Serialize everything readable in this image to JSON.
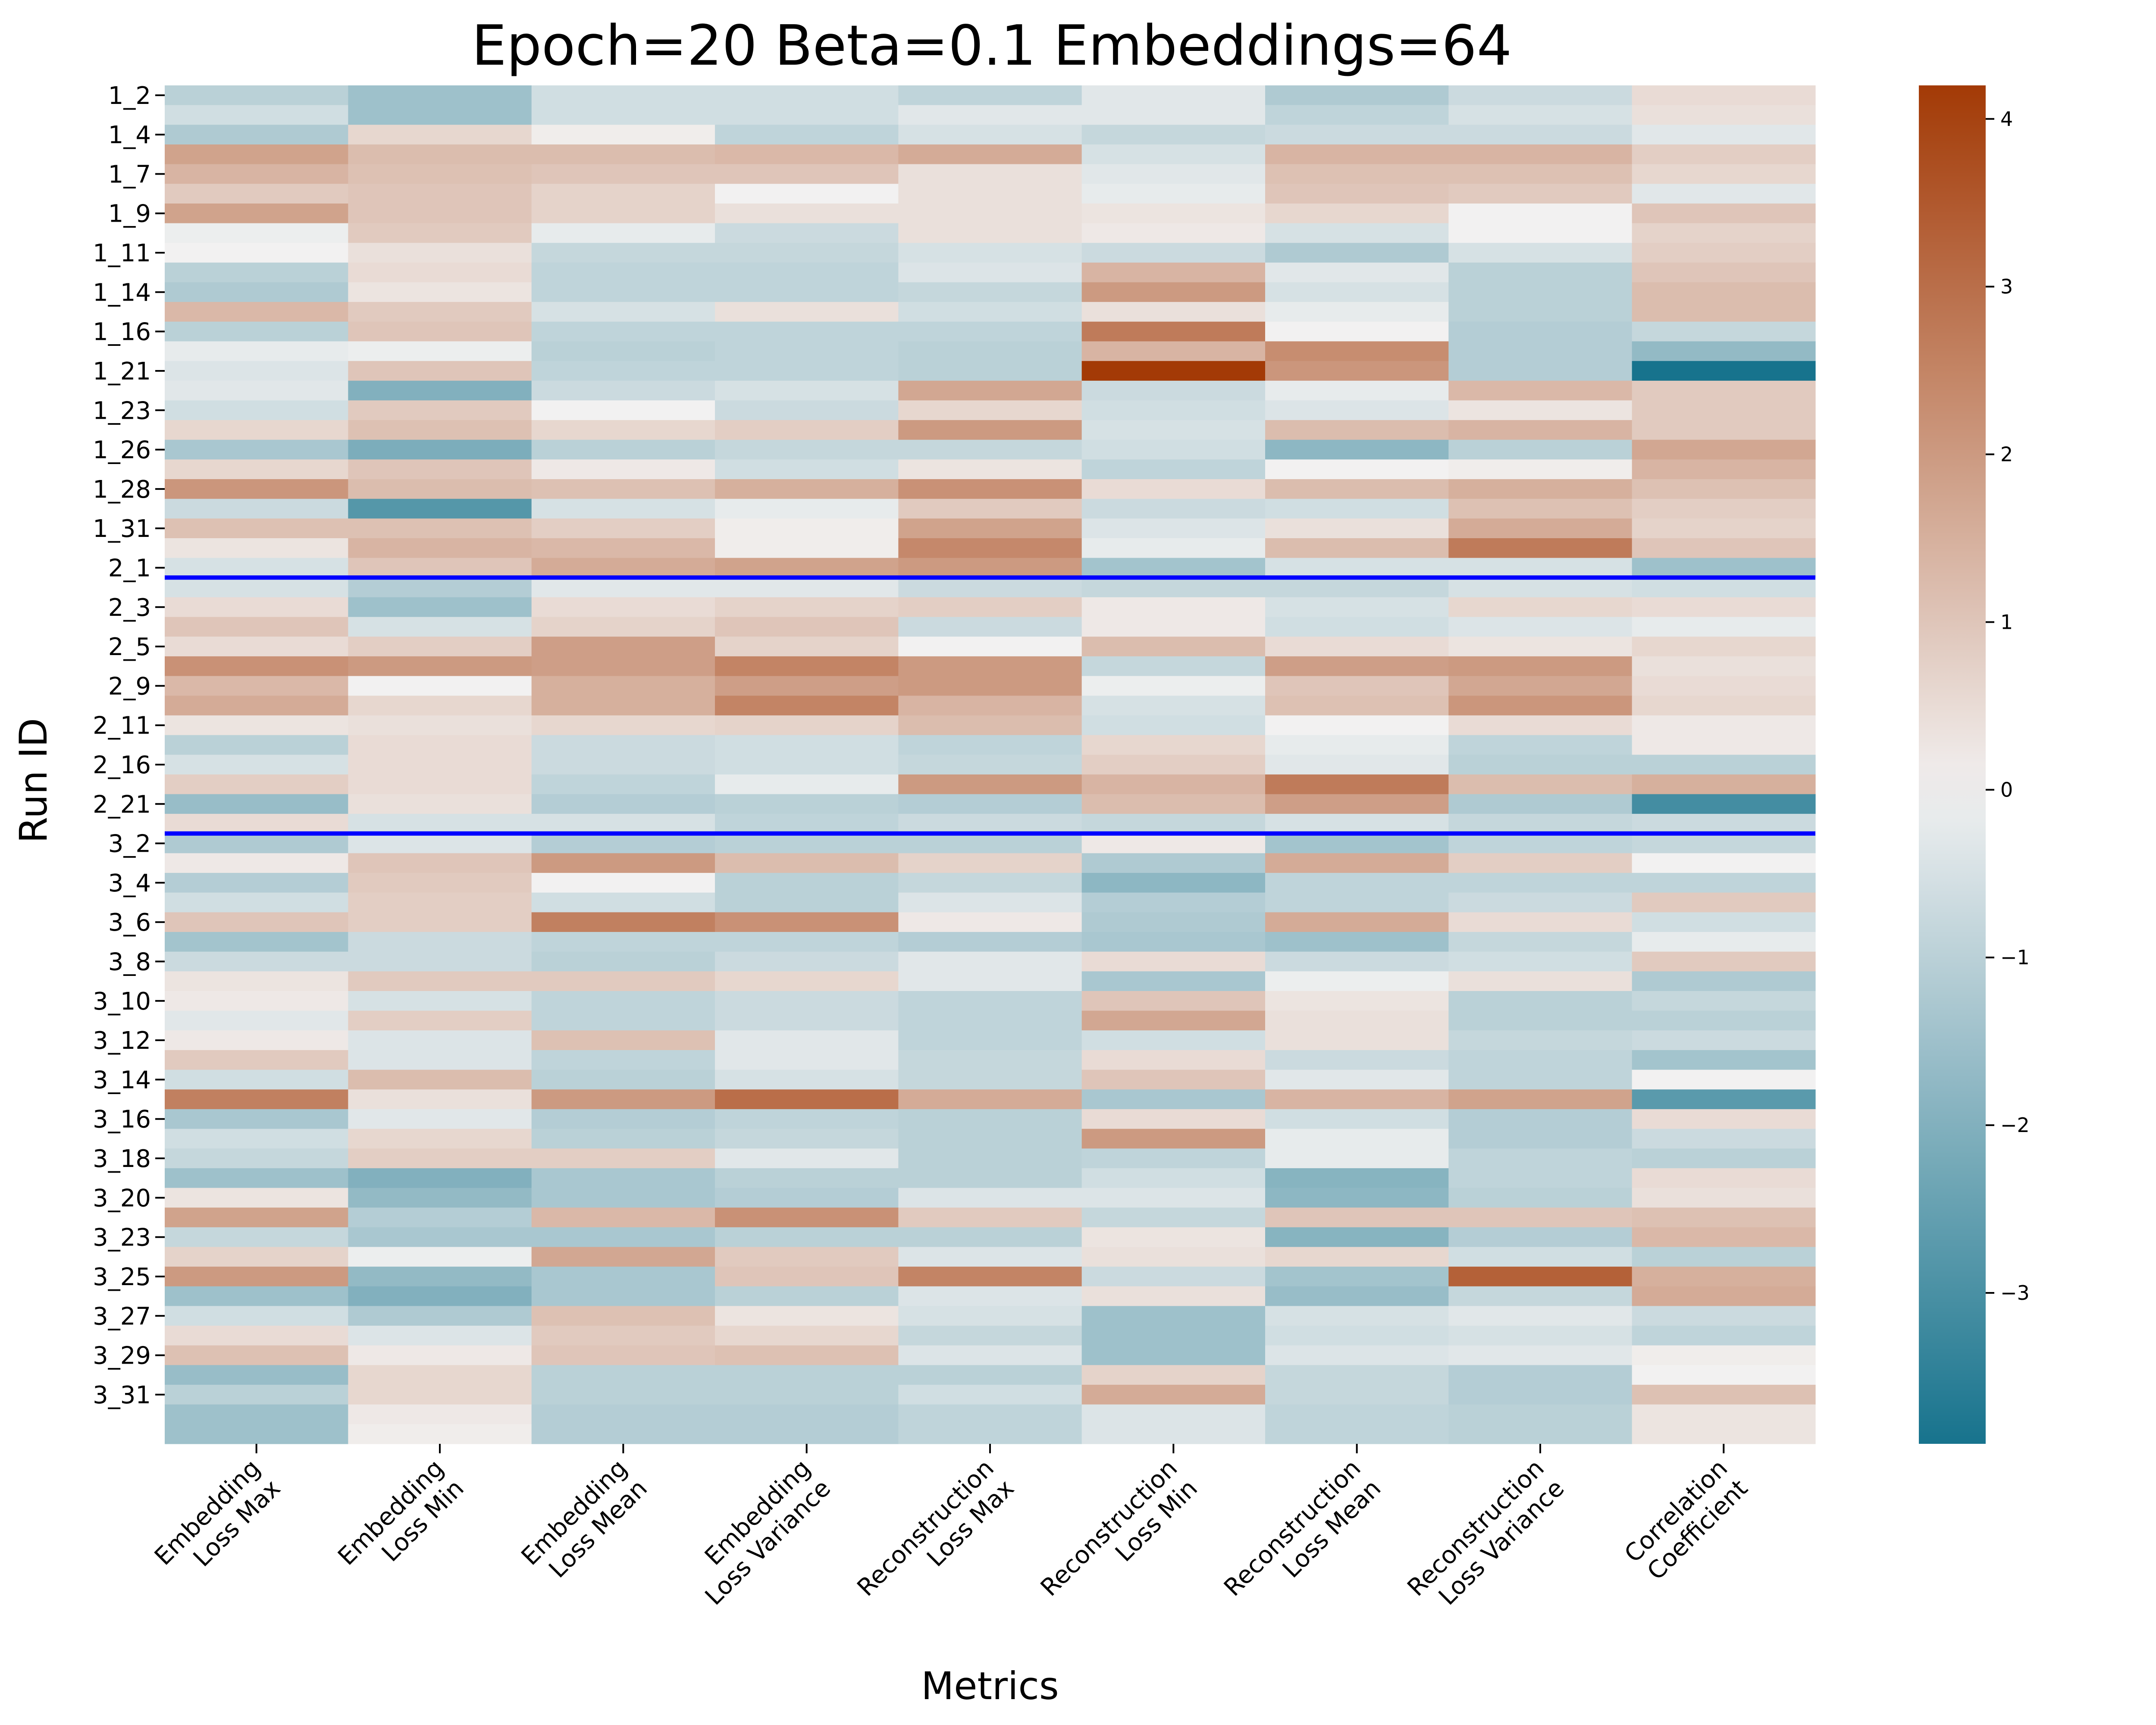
{
  "chart_data": {
    "type": "heatmap",
    "title": "Epoch=20 Beta=0.1 Embeddings=64",
    "xlabel": "Metrics",
    "ylabel": "Run ID",
    "x_categories": [
      [
        "Embedding",
        "Loss Max"
      ],
      [
        "Embedding",
        "Loss Min"
      ],
      [
        "Embedding",
        "Loss Mean"
      ],
      [
        "Embedding",
        "Loss Variance"
      ],
      [
        "Reconstruction",
        "Loss Max"
      ],
      [
        "Reconstruction",
        "Loss Min"
      ],
      [
        "Reconstruction",
        "Loss Mean"
      ],
      [
        "Reconstruction",
        "Loss Variance"
      ],
      [
        "Correlation",
        "Coefficient"
      ]
    ],
    "y_tick_labels": [
      "1_2",
      "1_4",
      "1_7",
      "1_9",
      "1_11",
      "1_14",
      "1_16",
      "1_21",
      "1_23",
      "1_26",
      "1_28",
      "1_31",
      "2_1",
      "2_3",
      "2_5",
      "2_9",
      "2_11",
      "2_16",
      "2_21",
      "3_2",
      "3_4",
      "3_6",
      "3_8",
      "3_10",
      "3_12",
      "3_14",
      "3_16",
      "3_18",
      "3_20",
      "3_23",
      "3_25",
      "3_27",
      "3_29",
      "3_31"
    ],
    "row_count": 69,
    "group_separators_after_row": [
      24,
      37
    ],
    "separator_color": "#0000ff",
    "colorbar": {
      "vmin": -3.9,
      "vmax": 4.2,
      "ticks": [
        -3,
        -2,
        -1,
        0,
        1,
        2,
        3,
        4
      ],
      "tick_labels": [
        "−3",
        "−2",
        "−1",
        "0",
        "1",
        "2",
        "3",
        "4"
      ],
      "low_color": "#17738d",
      "mid_color": "#f2f1f1",
      "high_color": "#a33a06"
    },
    "values": [
      [
        -1.0,
        -1.5,
        -0.6,
        -0.6,
        -0.9,
        -0.3,
        -1.2,
        -0.7,
        0.5
      ],
      [
        -0.6,
        -1.5,
        -0.6,
        -0.6,
        -0.3,
        -0.3,
        -0.9,
        -0.5,
        0.4
      ],
      [
        -1.2,
        0.6,
        0.1,
        -0.9,
        -0.5,
        -0.8,
        -0.7,
        -0.7,
        -0.3
      ],
      [
        1.8,
        1.2,
        1.2,
        1.3,
        1.6,
        -0.5,
        1.4,
        1.4,
        0.8
      ],
      [
        1.4,
        1.1,
        1.0,
        1.0,
        0.4,
        -0.3,
        1.1,
        1.1,
        0.6
      ],
      [
        0.9,
        1.0,
        0.7,
        0.0,
        0.4,
        -0.2,
        1.0,
        0.9,
        -0.3
      ],
      [
        1.8,
        1.0,
        0.7,
        0.4,
        0.4,
        0.3,
        0.6,
        0.0,
        1.0
      ],
      [
        -0.1,
        0.9,
        -0.2,
        -0.7,
        0.4,
        0.2,
        -0.5,
        0.0,
        0.7
      ],
      [
        0.0,
        0.4,
        -0.8,
        -0.8,
        -0.5,
        -0.7,
        -1.2,
        -0.5,
        0.8
      ],
      [
        -1.0,
        0.5,
        -0.9,
        -0.9,
        -0.4,
        1.4,
        -0.3,
        -1.0,
        1.0
      ],
      [
        -1.2,
        0.3,
        -0.9,
        -0.9,
        -0.8,
        2.0,
        -0.5,
        -1.0,
        1.2
      ],
      [
        1.3,
        0.9,
        -0.5,
        0.4,
        -0.6,
        0.4,
        -0.2,
        -1.0,
        1.2
      ],
      [
        -1.0,
        1.0,
        -0.9,
        -0.9,
        -0.9,
        2.7,
        0.0,
        -1.1,
        -0.8
      ],
      [
        -0.2,
        -0.1,
        -1.0,
        -0.9,
        -1.0,
        1.4,
        2.3,
        -1.1,
        -1.7
      ],
      [
        -0.4,
        1.0,
        -0.9,
        -0.9,
        -1.0,
        4.2,
        2.1,
        -1.1,
        -3.9
      ],
      [
        -0.3,
        -2.0,
        -0.7,
        -0.5,
        1.7,
        -0.7,
        -0.2,
        1.3,
        0.9
      ],
      [
        -0.6,
        0.9,
        0.0,
        -0.7,
        0.6,
        -0.6,
        -0.4,
        0.3,
        0.9
      ],
      [
        0.6,
        1.1,
        0.6,
        0.8,
        2.0,
        -0.5,
        1.2,
        1.4,
        0.9
      ],
      [
        -1.3,
        -2.1,
        -1.0,
        -0.8,
        -0.8,
        -0.6,
        -1.8,
        -1.0,
        1.7
      ],
      [
        0.6,
        1.0,
        0.2,
        -0.6,
        0.3,
        -0.9,
        0.0,
        0.1,
        1.4
      ],
      [
        2.1,
        1.2,
        1.1,
        1.5,
        2.2,
        0.5,
        1.2,
        1.5,
        1.1
      ],
      [
        -0.7,
        -2.8,
        -0.5,
        -0.2,
        0.9,
        -0.7,
        -0.6,
        1.1,
        0.8
      ],
      [
        1.1,
        1.1,
        0.8,
        0.1,
        1.8,
        -0.4,
        0.4,
        1.6,
        0.7
      ],
      [
        0.3,
        1.4,
        1.3,
        0.1,
        2.4,
        -0.2,
        1.2,
        2.7,
        1.0
      ],
      [
        -0.5,
        1.0,
        1.6,
        1.8,
        2.0,
        -1.4,
        -0.5,
        -0.5,
        -1.5
      ],
      [
        -0.5,
        -1.1,
        -0.3,
        -0.3,
        -0.7,
        -0.8,
        -0.8,
        -0.5,
        -0.6
      ],
      [
        0.5,
        -1.5,
        0.5,
        0.7,
        0.8,
        0.2,
        -0.5,
        0.6,
        0.5
      ],
      [
        1.0,
        -0.5,
        0.7,
        1.0,
        -0.7,
        0.2,
        -0.6,
        -0.4,
        -0.2
      ],
      [
        0.5,
        0.8,
        1.9,
        0.7,
        0.0,
        1.2,
        0.5,
        0.3,
        0.6
      ],
      [
        2.2,
        2.0,
        1.9,
        2.5,
        2.0,
        -0.8,
        1.9,
        2.0,
        0.4
      ],
      [
        1.3,
        0.0,
        1.5,
        1.9,
        2.0,
        -0.1,
        1.0,
        1.7,
        0.5
      ],
      [
        1.6,
        0.6,
        1.5,
        2.5,
        1.4,
        -0.5,
        1.1,
        2.1,
        0.6
      ],
      [
        0.3,
        0.4,
        0.6,
        0.7,
        1.2,
        -0.6,
        0.0,
        0.5,
        0.2
      ],
      [
        -1.0,
        0.5,
        -0.7,
        -0.6,
        -0.9,
        0.6,
        -0.2,
        -0.9,
        0.2
      ],
      [
        -0.5,
        0.5,
        -0.7,
        -0.6,
        -0.8,
        0.8,
        -0.3,
        -1.0,
        -1.0
      ],
      [
        0.8,
        0.5,
        -0.9,
        -0.2,
        2.0,
        1.4,
        2.7,
        1.2,
        1.5
      ],
      [
        -1.6,
        0.4,
        -1.1,
        -1.0,
        -1.1,
        1.2,
        1.9,
        -1.2,
        -3.1
      ],
      [
        0.5,
        -0.5,
        -0.5,
        -0.9,
        -0.7,
        -0.8,
        -0.5,
        -0.8,
        -0.7
      ],
      [
        -1.2,
        -0.4,
        -1.1,
        -1.0,
        -1.0,
        0.2,
        -1.4,
        -0.9,
        -0.8
      ],
      [
        0.2,
        1.0,
        2.0,
        1.2,
        0.7,
        -1.2,
        1.6,
        0.8,
        0.0
      ],
      [
        -1.1,
        0.9,
        0.0,
        -1.0,
        -0.8,
        -1.8,
        -0.9,
        -0.9,
        -0.9
      ],
      [
        -0.6,
        0.8,
        -0.6,
        -1.0,
        -0.4,
        -1.1,
        -0.9,
        -0.7,
        0.9
      ],
      [
        1.0,
        0.8,
        2.6,
        2.2,
        0.2,
        -1.2,
        1.6,
        0.5,
        -0.6
      ],
      [
        -1.4,
        -0.7,
        -0.9,
        -0.9,
        -1.1,
        -1.3,
        -1.5,
        -0.8,
        -0.2
      ],
      [
        -0.7,
        -0.7,
        -1.0,
        -0.7,
        -0.3,
        0.5,
        -0.7,
        -0.6,
        0.9
      ],
      [
        0.3,
        0.9,
        0.9,
        0.6,
        -0.3,
        -1.3,
        -0.1,
        0.4,
        -1.2
      ],
      [
        0.2,
        -0.5,
        -0.9,
        -0.7,
        -0.9,
        1.0,
        0.3,
        -1.0,
        -0.8
      ],
      [
        -0.3,
        0.8,
        -0.9,
        -0.7,
        -0.9,
        1.7,
        0.4,
        -1.0,
        -1.0
      ],
      [
        0.2,
        -0.4,
        1.1,
        -0.3,
        -0.9,
        -0.6,
        0.4,
        -0.8,
        -0.7
      ],
      [
        0.9,
        -0.4,
        -0.9,
        -0.3,
        -0.8,
        0.5,
        -0.7,
        -0.9,
        -1.4
      ],
      [
        -0.6,
        1.2,
        -1.0,
        -0.5,
        -0.8,
        1.0,
        -0.3,
        -0.9,
        0.0
      ],
      [
        2.6,
        0.4,
        2.0,
        3.0,
        1.6,
        -1.3,
        1.4,
        1.8,
        -2.7
      ],
      [
        -1.3,
        -0.3,
        -1.1,
        -0.9,
        -1.0,
        0.5,
        -0.6,
        -1.1,
        0.5
      ],
      [
        -0.6,
        0.6,
        -1.0,
        -0.8,
        -1.0,
        2.0,
        -0.2,
        -1.1,
        -0.7
      ],
      [
        -0.8,
        0.8,
        0.8,
        -0.3,
        -1.0,
        -0.9,
        -0.2,
        -0.9,
        -1.0
      ],
      [
        -1.5,
        -2.0,
        -1.3,
        -1.0,
        -1.0,
        -0.6,
        -1.9,
        -0.9,
        0.5
      ],
      [
        0.3,
        -1.7,
        -1.3,
        -1.1,
        -0.4,
        -0.4,
        -1.8,
        -1.0,
        0.4
      ],
      [
        1.8,
        -1.1,
        1.3,
        2.2,
        0.9,
        -0.8,
        1.0,
        1.0,
        1.1
      ],
      [
        -0.8,
        -1.3,
        -1.3,
        -1.0,
        -1.0,
        0.3,
        -1.9,
        -1.1,
        1.3
      ],
      [
        0.7,
        -0.1,
        1.7,
        0.9,
        -0.4,
        0.4,
        0.6,
        -0.6,
        -1.0
      ],
      [
        2.0,
        -1.7,
        -1.3,
        1.0,
        2.5,
        -0.7,
        -1.4,
        3.3,
        1.5
      ],
      [
        -1.5,
        -2.0,
        -1.3,
        -1.0,
        -0.4,
        0.4,
        -1.6,
        -0.8,
        1.6
      ],
      [
        -0.6,
        -1.2,
        1.1,
        0.3,
        -0.5,
        -1.5,
        -0.5,
        -0.3,
        -0.7
      ],
      [
        0.5,
        -0.4,
        0.9,
        0.6,
        -0.8,
        -1.5,
        -0.6,
        -0.5,
        -0.9
      ],
      [
        1.1,
        0.2,
        1.0,
        1.1,
        -0.4,
        -1.5,
        -0.4,
        -0.3,
        0.1
      ],
      [
        -1.6,
        0.6,
        -1.0,
        -1.0,
        -1.0,
        0.7,
        -0.8,
        -1.1,
        0.0
      ],
      [
        -1.0,
        0.6,
        -1.0,
        -1.0,
        -0.6,
        1.6,
        -0.8,
        -1.1,
        1.1
      ],
      [
        -1.5,
        0.2,
        -1.1,
        -1.1,
        -0.9,
        -0.4,
        -0.9,
        -1.0,
        0.3
      ],
      [
        -1.5,
        0.1,
        -1.1,
        -1.1,
        -0.9,
        -0.4,
        -0.9,
        -1.0,
        0.3
      ]
    ]
  }
}
